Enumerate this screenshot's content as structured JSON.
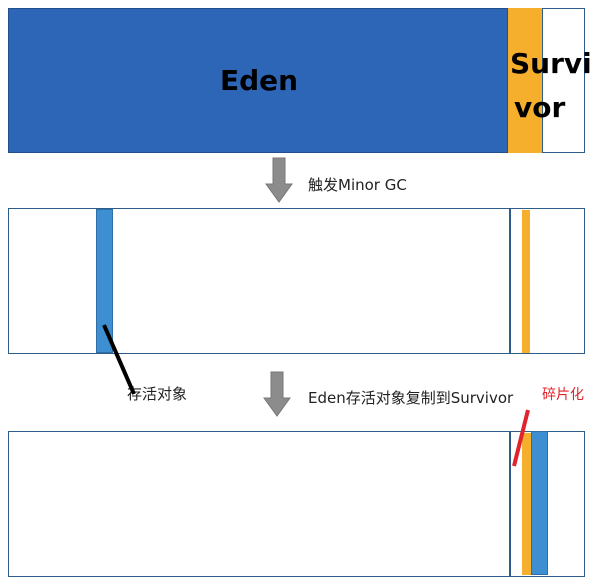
{
  "diagram": {
    "stage1": {
      "eden_label": "Eden",
      "survivor_label_line1": "Survi",
      "survivor_label_line2": "vor"
    },
    "arrow1_caption": "触发Minor GC",
    "stage2": {
      "live_object_label": "存活对象"
    },
    "arrow2_caption": "Eden存活对象复制到Survivor",
    "stage3": {
      "fragment_label": "碎片化"
    },
    "colors": {
      "eden_blue": "#2e66b7",
      "survivor_yellow": "#f6ae2d",
      "live_object_blue": "#3d8fd1",
      "border": "#2f5d8a",
      "arrow_gray": "#8c8c8c",
      "fragment_red": "#e0242b"
    }
  }
}
